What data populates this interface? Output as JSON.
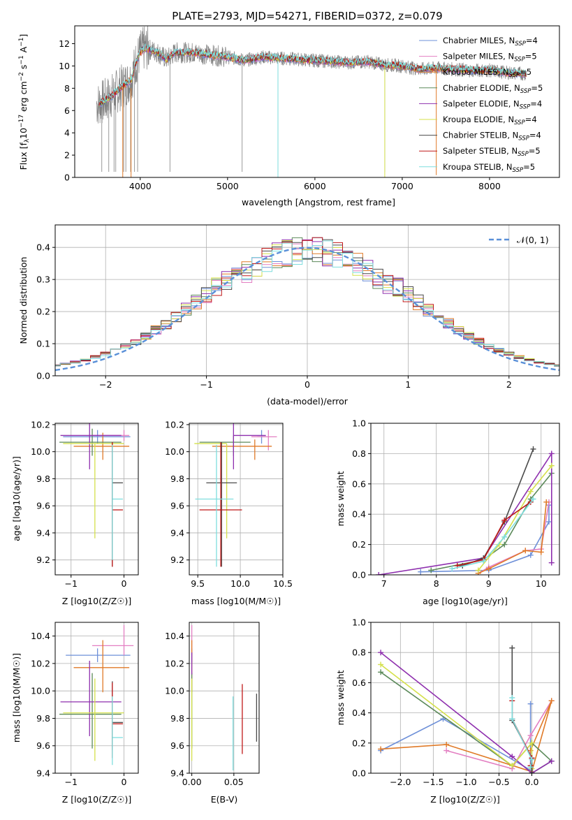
{
  "figure": {
    "title": "PLATE=2793, MJD=54271, FIBERID=0372, z=0.079"
  },
  "models": [
    {
      "name": "Chabrier MILES, N$_{SSP}$=4",
      "label": "Chabrier MILES, N",
      "sub": "SSP",
      "eq": "=4",
      "color": "#6e90d8"
    },
    {
      "name": "Salpeter MILES, N$_{SSP}$=5",
      "label": "Salpeter MILES, N",
      "sub": "SSP",
      "eq": "=5",
      "color": "#e37fc2"
    },
    {
      "name": "Kroupa MILES, N$_{SSP}$=5",
      "label": "Kroupa MILES, N",
      "sub": "SSP",
      "eq": "=5",
      "color": "#e07a27"
    },
    {
      "name": "Chabrier ELODIE, N$_{SSP}$=5",
      "label": "Chabrier ELODIE, N",
      "sub": "SSP",
      "eq": "=5",
      "color": "#5c8a5a"
    },
    {
      "name": "Salpeter ELODIE, N$_{SSP}$=4",
      "label": "Salpeter ELODIE, N",
      "sub": "SSP",
      "eq": "=4",
      "color": "#8e2fae"
    },
    {
      "name": "Kroupa ELODIE, N$_{SSP}$=4",
      "label": "Kroupa ELODIE, N",
      "sub": "SSP",
      "eq": "=4",
      "color": "#d4e04a"
    },
    {
      "name": "Chabrier STELIB, N$_{SSP}$=4",
      "label": "Chabrier STELIB, N",
      "sub": "SSP",
      "eq": "=4",
      "color": "#4a4a4a"
    },
    {
      "name": "Salpeter STELIB, N$_{SSP}$=5",
      "label": "Salpeter STELIB, N",
      "sub": "SSP",
      "eq": "=5",
      "color": "#c01818"
    },
    {
      "name": "Kroupa STELIB, N$_{SSP}$=5",
      "label": "Kroupa STELIB, N",
      "sub": "SSP",
      "eq": "=5",
      "color": "#7fdede"
    }
  ],
  "chart_data": [
    {
      "id": "spectrum",
      "type": "line",
      "xlabel": "wavelength [Angstrom, rest frame]",
      "ylabel": "Flux [f_λ 10^-17 erg cm^-2 s^-1 A^-1]",
      "ylabel_parts": {
        "a": "Flux [f",
        "b": "λ",
        "c": "10",
        "d": "−17",
        "e": " erg cm",
        "f": "−2",
        "g": " s",
        "h": "−1",
        "i": " A",
        "j": "−1",
        "k": "]"
      },
      "xlim": [
        3250,
        8800
      ],
      "ylim": [
        0,
        13.6
      ],
      "xticks": [
        4000,
        5000,
        6000,
        7000,
        8000
      ],
      "yticks": [
        0,
        2,
        4,
        6,
        8,
        10,
        12
      ],
      "data_grey": {
        "color": "#808080",
        "x_range": [
          3500,
          8420
        ]
      },
      "continuum": {
        "x": [
          3530,
          3600,
          3700,
          3800,
          3900,
          3950,
          4000,
          4050,
          4100,
          4200,
          4300,
          4400,
          4600,
          4800,
          5000,
          5200,
          5400,
          5600,
          5800,
          6000,
          6200,
          6400,
          6600,
          6800,
          7000,
          7200,
          7400,
          7600,
          7800,
          8000,
          8200,
          8400
        ],
        "y": [
          6.6,
          6.9,
          7.5,
          8.2,
          8.8,
          10.3,
          11.2,
          11.6,
          11.5,
          11.2,
          10.6,
          11.2,
          11.2,
          11.0,
          10.8,
          10.5,
          10.8,
          10.7,
          10.6,
          10.5,
          10.4,
          10.3,
          10.4,
          10.1,
          10.0,
          9.7,
          9.8,
          9.7,
          9.6,
          9.6,
          9.4,
          9.3
        ]
      }
    },
    {
      "id": "residual_hist",
      "type": "step",
      "xlabel": "(data-model)/error",
      "ylabel": "Normed distribution",
      "xlim": [
        -2.5,
        2.5
      ],
      "ylim": [
        0,
        0.47
      ],
      "xticks": [
        -2,
        -1,
        0,
        1,
        2
      ],
      "yticks": [
        0.0,
        0.1,
        0.2,
        0.3,
        0.4
      ],
      "gauss_label": "$\\mathcal{N}(0,1)$",
      "gauss_text": "𝒩(0, 1)",
      "gauss_color": "#5a90d8",
      "bin_width": 0.1
    },
    {
      "id": "age_vs_Z",
      "type": "errorbar",
      "xlabel": "Z [log10(Z/Z☉)]",
      "ylabel": "age  [log10(age/yr)]",
      "xlim": [
        -1.3,
        0.27
      ],
      "ylim": [
        9.09,
        10.21
      ],
      "xticks": [
        -1,
        0
      ],
      "yticks": [
        9.2,
        9.4,
        9.6,
        9.8,
        10.0,
        10.2
      ],
      "points": [
        {
          "m": 0,
          "x": -0.5,
          "xerr": [
            0.65,
            0.62
          ],
          "y": 10.11,
          "yerr": [
            0.05,
            0.05
          ]
        },
        {
          "m": 1,
          "x": 0.0,
          "xerr": [
            0.6,
            0.1
          ],
          "y": 10.12,
          "yerr": [
            0.04,
            0.04
          ]
        },
        {
          "m": 2,
          "x": -0.4,
          "xerr": [
            0.55,
            0.5
          ],
          "y": 10.04,
          "yerr": [
            0.1,
            0.1
          ]
        },
        {
          "m": 3,
          "x": -0.6,
          "xerr": [
            0.62,
            0.55
          ],
          "y": 10.07,
          "yerr": [
            0.1,
            0.1
          ]
        },
        {
          "m": 4,
          "x": -0.65,
          "xerr": [
            0.55,
            0.6
          ],
          "y": 10.12,
          "yerr": [
            0.25,
            0.25
          ]
        },
        {
          "m": 5,
          "x": -0.55,
          "xerr": [
            0.6,
            0.55
          ],
          "y": 10.06,
          "yerr": [
            0.7,
            0.0
          ]
        },
        {
          "m": 6,
          "x": -0.22,
          "xerr": [
            0.0,
            0.2
          ],
          "y": 9.77,
          "yerr": [
            0.62,
            0.3
          ]
        },
        {
          "m": 7,
          "x": -0.22,
          "xerr": [
            0.0,
            0.2
          ],
          "y": 9.57,
          "yerr": [
            0.42,
            0.5
          ]
        },
        {
          "m": 8,
          "x": -0.22,
          "xerr": [
            0.0,
            0.2
          ],
          "y": 9.65,
          "yerr": [
            0.45,
            0.4
          ]
        }
      ]
    },
    {
      "id": "age_vs_mass",
      "type": "errorbar",
      "xlabel": "mass [log10(M/M☉)]",
      "ylabel": "",
      "xlim": [
        9.4,
        10.5
      ],
      "ylim": [
        9.09,
        10.21
      ],
      "xticks": [
        9.5,
        10.0,
        10.5
      ],
      "yticks": [
        9.2,
        9.4,
        9.6,
        9.8,
        10.0,
        10.2
      ],
      "points": [
        {
          "m": 0,
          "x": 10.25,
          "xerr": [
            0.05,
            0.05
          ],
          "y": 10.11,
          "yerr": [
            0.05,
            0.05
          ]
        },
        {
          "m": 1,
          "x": 10.33,
          "xerr": [
            0.2,
            0.1
          ],
          "y": 10.11,
          "yerr": [
            0.1,
            0.05
          ]
        },
        {
          "m": 2,
          "x": 10.17,
          "xerr": [
            0.5,
            0.2
          ],
          "y": 10.04,
          "yerr": [
            0.1,
            0.05
          ]
        },
        {
          "m": 3,
          "x": 9.92,
          "xerr": [
            0.4,
            0.2
          ],
          "y": 10.07,
          "yerr": [
            0.1,
            0.05
          ]
        },
        {
          "m": 4,
          "x": 9.92,
          "xerr": [
            0.0,
            0.38
          ],
          "y": 10.12,
          "yerr": [
            0.25,
            0.1
          ]
        },
        {
          "m": 5,
          "x": 9.84,
          "xerr": [
            0.38,
            0.0
          ],
          "y": 10.06,
          "yerr": [
            0.7,
            0.0
          ]
        },
        {
          "m": 6,
          "x": 9.78,
          "xerr": [
            0.18,
            0.18
          ],
          "y": 9.77,
          "yerr": [
            0.62,
            0.3
          ]
        },
        {
          "m": 7,
          "x": 9.77,
          "xerr": [
            0.25,
            0.25
          ],
          "y": 9.57,
          "yerr": [
            0.42,
            0.5
          ]
        },
        {
          "m": 8,
          "x": 9.72,
          "xerr": [
            0.25,
            0.2
          ],
          "y": 9.65,
          "yerr": [
            0.5,
            0.4
          ]
        }
      ]
    },
    {
      "id": "weight_vs_age",
      "type": "line",
      "xlabel": "age  [log10(age/yr)]",
      "ylabel": "mass weight",
      "xlim": [
        6.75,
        10.35
      ],
      "ylim": [
        0,
        1.0
      ],
      "xticks": [
        7,
        8,
        9,
        10
      ],
      "yticks": [
        0.0,
        0.2,
        0.4,
        0.6,
        0.8,
        1.0
      ],
      "series": [
        {
          "m": 0,
          "x": [
            7.7,
            9.0,
            9.8,
            10.15,
            10.15
          ],
          "y": [
            0.02,
            0.03,
            0.13,
            0.35,
            0.46
          ]
        },
        {
          "m": 1,
          "x": [
            8.8,
            9.0,
            9.7,
            10.0,
            10.15
          ],
          "y": [
            0.01,
            0.05,
            0.16,
            0.17,
            0.48
          ]
        },
        {
          "m": 2,
          "x": [
            8.8,
            9.0,
            9.7,
            10.0,
            10.1
          ],
          "y": [
            0.01,
            0.04,
            0.16,
            0.15,
            0.48
          ]
        },
        {
          "m": 3,
          "x": [
            7.9,
            8.9,
            9.3,
            9.8,
            10.2
          ],
          "y": [
            0.03,
            0.1,
            0.2,
            0.5,
            0.67
          ]
        },
        {
          "m": 4,
          "x": [
            6.9,
            8.9,
            10.2,
            10.2
          ],
          "y": [
            0.0,
            0.11,
            0.8,
            0.08
          ]
        },
        {
          "m": 5,
          "x": [
            8.8,
            9.2,
            9.8,
            10.2
          ],
          "y": [
            0.03,
            0.2,
            0.55,
            0.72
          ]
        },
        {
          "m": 6,
          "x": [
            8.5,
            8.9,
            9.3,
            9.85
          ],
          "y": [
            0.06,
            0.11,
            0.35,
            0.83
          ]
        },
        {
          "m": 7,
          "x": [
            8.4,
            8.9,
            9.3,
            9.8
          ],
          "y": [
            0.06,
            0.1,
            0.36,
            0.48
          ]
        },
        {
          "m": 8,
          "x": [
            8.3,
            8.9,
            9.3,
            9.85
          ],
          "y": [
            0.04,
            0.09,
            0.25,
            0.5
          ]
        }
      ]
    },
    {
      "id": "mass_vs_Z",
      "type": "errorbar",
      "xlabel": "Z [log10(Z/Z☉)]",
      "ylabel": "mass [log10(M/M☉)]",
      "xlim": [
        -1.3,
        0.27
      ],
      "ylim": [
        9.4,
        10.5
      ],
      "xticks": [
        -1,
        0
      ],
      "yticks": [
        9.4,
        9.6,
        9.8,
        10.0,
        10.2,
        10.4
      ],
      "points": [
        {
          "m": 0,
          "x": -0.5,
          "xerr": [
            0.6,
            0.62
          ],
          "y": 10.26,
          "yerr": [
            0.05,
            0.05
          ]
        },
        {
          "m": 1,
          "x": 0.0,
          "xerr": [
            0.6,
            0.18
          ],
          "y": 10.33,
          "yerr": [
            0.07,
            0.15
          ]
        },
        {
          "m": 2,
          "x": -0.4,
          "xerr": [
            0.55,
            0.5
          ],
          "y": 10.17,
          "yerr": [
            0.18,
            0.2
          ]
        },
        {
          "m": 3,
          "x": -0.6,
          "xerr": [
            0.62,
            0.55
          ],
          "y": 9.83,
          "yerr": [
            0.25,
            0.3
          ]
        },
        {
          "m": 4,
          "x": -0.65,
          "xerr": [
            0.55,
            0.6
          ],
          "y": 9.92,
          "yerr": [
            0.25,
            0.3
          ]
        },
        {
          "m": 5,
          "x": -0.55,
          "xerr": [
            0.6,
            0.55
          ],
          "y": 9.84,
          "yerr": [
            0.35,
            0.25
          ]
        },
        {
          "m": 6,
          "x": -0.22,
          "xerr": [
            0.0,
            0.2
          ],
          "y": 9.77,
          "yerr": [
            0.2,
            0.3
          ]
        },
        {
          "m": 7,
          "x": -0.22,
          "xerr": [
            0.0,
            0.2
          ],
          "y": 9.76,
          "yerr": [
            0.25,
            0.3
          ]
        },
        {
          "m": 8,
          "x": -0.22,
          "xerr": [
            0.0,
            0.2
          ],
          "y": 9.66,
          "yerr": [
            0.2,
            0.3
          ]
        }
      ]
    },
    {
      "id": "mass_vs_EBV",
      "type": "errorbar",
      "xlabel": "E(B-V)",
      "ylabel": "",
      "xlim": [
        -0.003,
        0.08
      ],
      "ylim": [
        9.4,
        10.5
      ],
      "xticks": [
        0.0,
        0.05
      ],
      "yticks": [
        9.4,
        9.6,
        9.8,
        10.0,
        10.2,
        10.4
      ],
      "points": [
        {
          "m": 0,
          "x": 0.0,
          "y": 10.26,
          "yerr": [
            0.05,
            0.05
          ]
        },
        {
          "m": 1,
          "x": 0.0,
          "y": 10.33,
          "yerr": [
            0.07,
            0.15
          ]
        },
        {
          "m": 2,
          "x": 0.0,
          "y": 10.17,
          "yerr": [
            0.18,
            0.2
          ]
        },
        {
          "m": 3,
          "x": 0.0,
          "y": 9.83,
          "yerr": [
            0.25,
            0.3
          ]
        },
        {
          "m": 4,
          "x": 0.0,
          "y": 10.2,
          "yerr": [
            0.08,
            0.08
          ]
        },
        {
          "m": 5,
          "x": 0.0,
          "y": 9.84,
          "yerr": [
            0.35,
            0.25
          ]
        },
        {
          "m": 6,
          "x": 0.077,
          "y": 9.8,
          "yerr": [
            0.17,
            0.18
          ]
        },
        {
          "m": 7,
          "x": 0.06,
          "y": 9.8,
          "yerr": [
            0.26,
            0.25
          ]
        },
        {
          "m": 8,
          "x": 0.049,
          "y": 9.66,
          "yerr": [
            0.24,
            0.3
          ]
        }
      ]
    },
    {
      "id": "weight_vs_Z",
      "type": "line",
      "xlabel": "Z [log10(Z/Z☉)]",
      "ylabel": "mass weight",
      "xlim": [
        -2.45,
        0.42
      ],
      "ylim": [
        0,
        1.0
      ],
      "xticks": [
        -2.0,
        -1.5,
        -1.0,
        -0.5,
        0.0
      ],
      "yticks": [
        0.0,
        0.2,
        0.4,
        0.6,
        0.8,
        1.0
      ],
      "series": [
        {
          "m": 0,
          "x": [
            -2.3,
            -1.35,
            -0.02,
            -0.02
          ],
          "y": [
            0.15,
            0.36,
            0.02,
            0.46
          ]
        },
        {
          "m": 1,
          "x": [
            -1.3,
            -0.3,
            -0.02,
            0.3
          ],
          "y": [
            0.15,
            0.03,
            0.25,
            0.48
          ]
        },
        {
          "m": 2,
          "x": [
            -2.3,
            -1.3,
            0.0,
            0.3,
            -0.02
          ],
          "y": [
            0.16,
            0.19,
            0.01,
            0.48,
            0.15
          ]
        },
        {
          "m": 3,
          "x": [
            -2.3,
            -0.3,
            0.0,
            0.3,
            0.0
          ],
          "y": [
            0.67,
            0.05,
            0.2,
            0.08,
            0.0
          ]
        },
        {
          "m": 4,
          "x": [
            -2.3,
            -0.3,
            0.0,
            0.3
          ],
          "y": [
            0.8,
            0.11,
            0.0,
            0.08
          ]
        },
        {
          "m": 5,
          "x": [
            -2.3,
            -0.3,
            0.0,
            0.0
          ],
          "y": [
            0.72,
            0.05,
            0.2,
            0.03
          ]
        },
        {
          "m": 6,
          "x": [
            -0.3,
            -0.3,
            0.0,
            0.0
          ],
          "y": [
            0.83,
            0.35,
            0.1,
            0.0
          ]
        },
        {
          "m": 7,
          "x": [
            -0.3,
            -0.3,
            0.0,
            -0.02
          ],
          "y": [
            0.48,
            0.36,
            0.1,
            0.05
          ]
        },
        {
          "m": 8,
          "x": [
            -0.3,
            -0.3,
            0.0,
            -0.02
          ],
          "y": [
            0.5,
            0.36,
            0.09,
            0.04
          ]
        }
      ]
    }
  ]
}
